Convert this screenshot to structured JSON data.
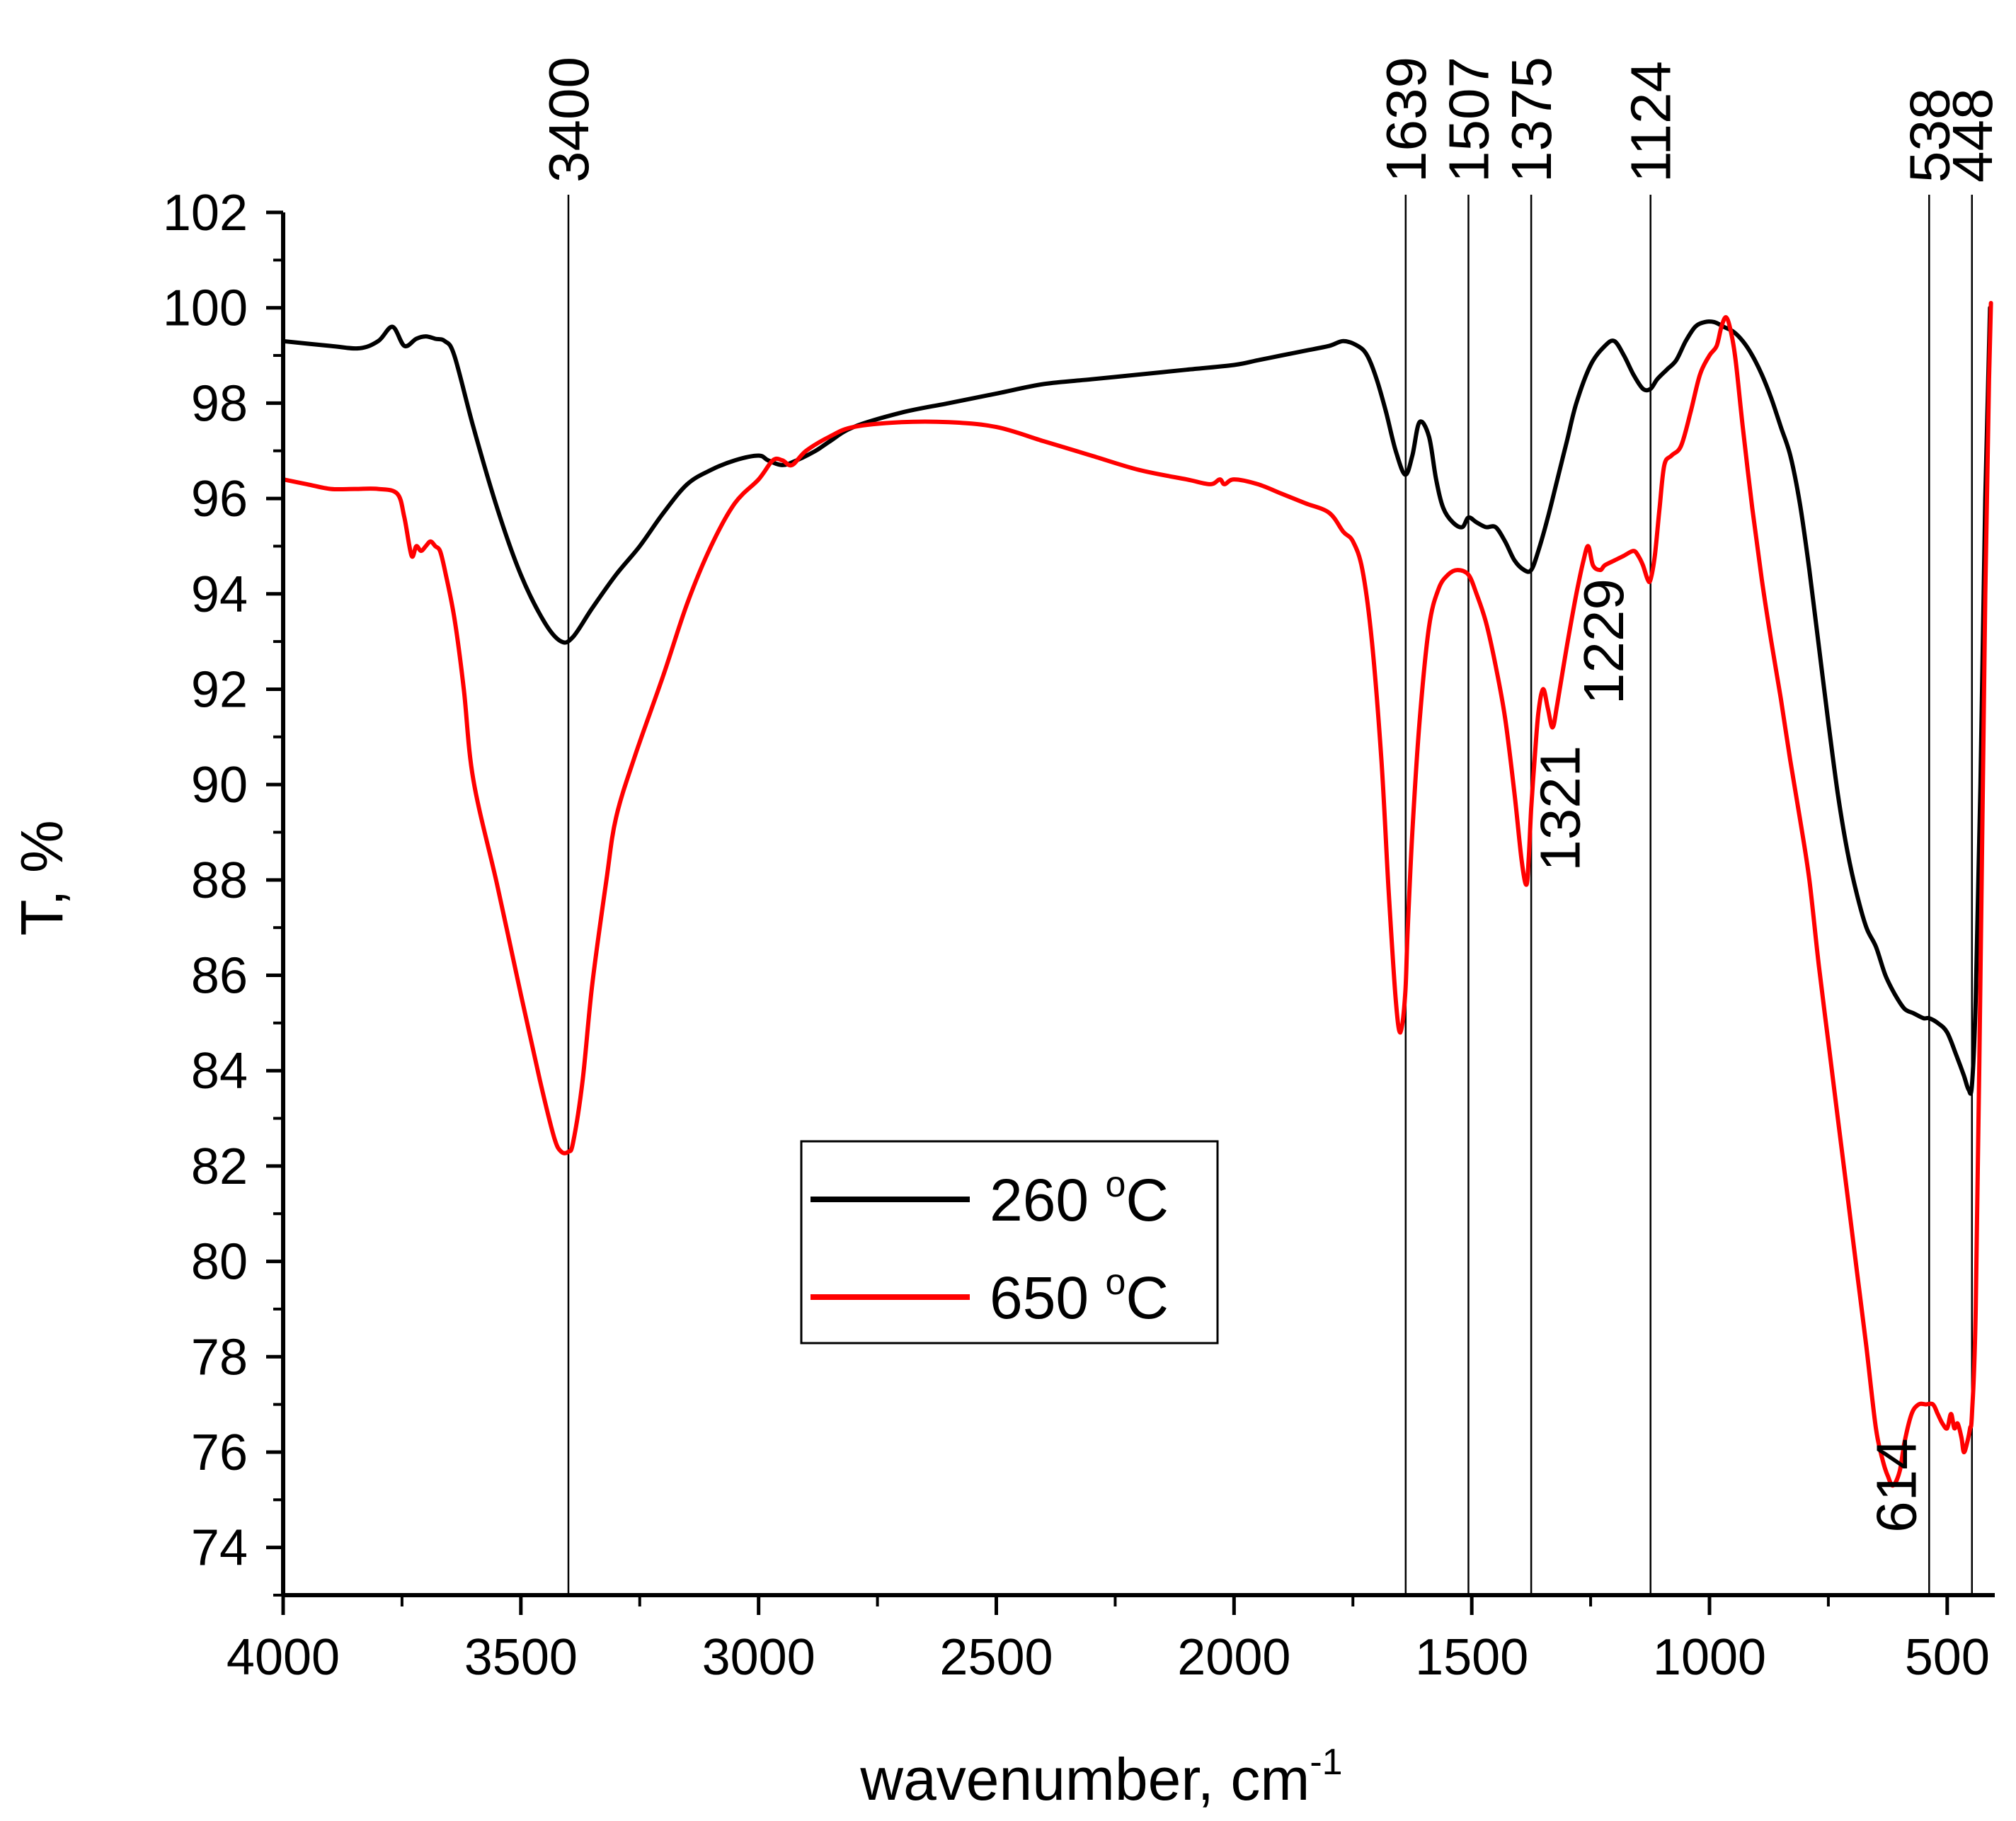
{
  "chart_data": {
    "type": "line",
    "title": "",
    "xlabel": "wavenumber, cm",
    "xlabel_sup": "-1",
    "ylabel": "T, %",
    "xlim": [
      4000,
      400
    ],
    "ylim": [
      73,
      102
    ],
    "x_ticks": [
      4000,
      3500,
      3000,
      2500,
      2000,
      1500,
      1000,
      500
    ],
    "y_ticks": [
      74,
      76,
      78,
      80,
      82,
      84,
      86,
      88,
      90,
      92,
      94,
      96,
      98,
      100,
      102
    ],
    "x_tick_labels": [
      "4000",
      "3500",
      "3000",
      "2500",
      "2000",
      "1500",
      "1000",
      "500"
    ],
    "y_tick_labels": [
      "74",
      "76",
      "78",
      "80",
      "82",
      "84",
      "86",
      "88",
      "90",
      "92",
      "94",
      "96",
      "98",
      "100",
      "102"
    ],
    "legend": {
      "position": "lower-center",
      "entries": [
        {
          "label": "260 ",
          "sup": "o",
          "unit": "C",
          "color": "#000000"
        },
        {
          "label": "650 ",
          "sup": "o",
          "unit": "C",
          "color": "#ff0000"
        }
      ]
    },
    "reference_lines": [
      {
        "x": 3400,
        "label": "3400"
      },
      {
        "x": 1639,
        "label": "1639"
      },
      {
        "x": 1507,
        "label": "1507"
      },
      {
        "x": 1375,
        "label": "1375"
      },
      {
        "x": 1124,
        "label": "1124"
      },
      {
        "x": 538,
        "label": "538"
      },
      {
        "x": 448,
        "label": "448"
      }
    ],
    "inline_labels": [
      {
        "x": 1321,
        "y": 89.5,
        "label": "1321"
      },
      {
        "x": 1229,
        "y": 93.0,
        "label": "1229"
      },
      {
        "x": 614,
        "y": 75.3,
        "label": "614"
      }
    ],
    "series": [
      {
        "name": "260 °C",
        "color": "#000000",
        "x": [
          4000,
          3900,
          3840,
          3800,
          3770,
          3745,
          3720,
          3700,
          3680,
          3660,
          3640,
          3600,
          3550,
          3500,
          3450,
          3415,
          3390,
          3350,
          3300,
          3250,
          3200,
          3150,
          3100,
          3050,
          3000,
          2980,
          2950,
          2920,
          2880,
          2850,
          2800,
          2700,
          2600,
          2500,
          2400,
          2300,
          2200,
          2100,
          2000,
          1950,
          1900,
          1850,
          1800,
          1770,
          1740,
          1720,
          1700,
          1680,
          1660,
          1640,
          1625,
          1610,
          1590,
          1575,
          1560,
          1540,
          1520,
          1507,
          1490,
          1470,
          1450,
          1430,
          1410,
          1390,
          1375,
          1360,
          1340,
          1320,
          1300,
          1280,
          1250,
          1220,
          1200,
          1180,
          1160,
          1140,
          1124,
          1110,
          1090,
          1070,
          1050,
          1030,
          1010,
          990,
          970,
          950,
          930,
          910,
          890,
          870,
          850,
          830,
          810,
          790,
          770,
          750,
          730,
          710,
          690,
          670,
          650,
          630,
          610,
          590,
          570,
          550,
          538,
          520,
          500,
          480,
          465,
          455,
          448,
          440,
          430,
          420,
          410
        ],
        "y": [
          99.3,
          99.2,
          99.15,
          99.3,
          99.6,
          99.2,
          99.35,
          99.4,
          99.35,
          99.3,
          99.0,
          97.5,
          95.8,
          94.4,
          93.4,
          93.0,
          93.1,
          93.7,
          94.4,
          95.0,
          95.7,
          96.3,
          96.6,
          96.8,
          96.9,
          96.8,
          96.7,
          96.8,
          97.0,
          97.2,
          97.5,
          97.8,
          98.0,
          98.2,
          98.4,
          98.5,
          98.6,
          98.7,
          98.8,
          98.9,
          99.0,
          99.1,
          99.2,
          99.3,
          99.2,
          99.0,
          98.5,
          97.8,
          97.0,
          96.5,
          96.9,
          97.6,
          97.3,
          96.4,
          95.8,
          95.5,
          95.4,
          95.6,
          95.5,
          95.4,
          95.4,
          95.1,
          94.7,
          94.5,
          94.5,
          94.9,
          95.6,
          96.4,
          97.2,
          98.0,
          98.8,
          99.2,
          99.3,
          99.0,
          98.6,
          98.3,
          98.3,
          98.5,
          98.7,
          98.9,
          99.3,
          99.6,
          99.7,
          99.7,
          99.6,
          99.5,
          99.3,
          99.0,
          98.6,
          98.1,
          97.5,
          96.9,
          95.9,
          94.5,
          92.9,
          91.3,
          89.8,
          88.6,
          87.7,
          87.0,
          86.6,
          86.0,
          85.6,
          85.3,
          85.2,
          85.1,
          85.1,
          85.0,
          84.8,
          84.3,
          83.9,
          83.6,
          83.7,
          85.5,
          90.0,
          96.0,
          100.0
        ]
      },
      {
        "name": "650 °C",
        "color": "#ff0000",
        "x": [
          4000,
          3950,
          3900,
          3850,
          3800,
          3760,
          3745,
          3730,
          3720,
          3710,
          3700,
          3690,
          3680,
          3670,
          3660,
          3640,
          3620,
          3600,
          3550,
          3500,
          3460,
          3430,
          3415,
          3400,
          3390,
          3370,
          3350,
          3320,
          3300,
          3260,
          3200,
          3150,
          3100,
          3050,
          3000,
          2970,
          2950,
          2930,
          2900,
          2850,
          2800,
          2700,
          2600,
          2500,
          2400,
          2300,
          2200,
          2100,
          2050,
          2030,
          2020,
          2000,
          1950,
          1900,
          1850,
          1800,
          1770,
          1750,
          1730,
          1710,
          1690,
          1675,
          1660,
          1650,
          1640,
          1635,
          1625,
          1610,
          1590,
          1570,
          1550,
          1530,
          1507,
          1490,
          1470,
          1450,
          1430,
          1410,
          1395,
          1385,
          1380,
          1375,
          1368,
          1360,
          1350,
          1340,
          1330,
          1320,
          1300,
          1280,
          1265,
          1255,
          1245,
          1230,
          1220,
          1200,
          1180,
          1160,
          1150,
          1140,
          1130,
          1124,
          1115,
          1105,
          1095,
          1080,
          1060,
          1040,
          1020,
          1000,
          985,
          975,
          965,
          955,
          945,
          930,
          910,
          890,
          870,
          850,
          830,
          810,
          790,
          770,
          750,
          730,
          710,
          690,
          670,
          650,
          635,
          625,
          614,
          600,
          590,
          575,
          560,
          545,
          530,
          520,
          510,
          500,
          492,
          485,
          478,
          470,
          465,
          458,
          452,
          448,
          440,
          430,
          420,
          412,
          408
        ],
        "y": [
          96.4,
          96.3,
          96.2,
          96.2,
          96.2,
          96.1,
          95.6,
          94.8,
          95.0,
          94.9,
          95.0,
          95.1,
          95.0,
          94.9,
          94.5,
          93.5,
          92.0,
          90.1,
          87.9,
          85.6,
          83.8,
          82.6,
          82.3,
          82.3,
          82.5,
          83.8,
          85.8,
          88.0,
          89.3,
          90.6,
          92.3,
          93.8,
          95.0,
          95.9,
          96.4,
          96.8,
          96.8,
          96.7,
          97.0,
          97.3,
          97.5,
          97.6,
          97.6,
          97.5,
          97.2,
          96.9,
          96.6,
          96.4,
          96.3,
          96.4,
          96.3,
          96.4,
          96.3,
          96.1,
          95.9,
          95.7,
          95.3,
          95.1,
          94.5,
          93.0,
          90.5,
          87.8,
          85.5,
          84.8,
          85.6,
          86.9,
          89.0,
          91.3,
          93.3,
          94.1,
          94.4,
          94.5,
          94.4,
          94.0,
          93.4,
          92.5,
          91.4,
          89.8,
          88.4,
          87.9,
          88.5,
          89.5,
          90.5,
          91.5,
          92.0,
          91.6,
          91.2,
          91.7,
          92.9,
          94.0,
          94.7,
          95.0,
          94.6,
          94.5,
          94.6,
          94.7,
          94.8,
          94.9,
          94.8,
          94.6,
          94.3,
          94.3,
          94.8,
          95.8,
          96.7,
          96.9,
          97.1,
          97.8,
          98.6,
          99.0,
          99.2,
          99.6,
          99.8,
          99.5,
          98.9,
          97.5,
          95.8,
          94.3,
          93.0,
          91.8,
          90.5,
          89.3,
          88.0,
          86.2,
          84.6,
          83.0,
          81.4,
          79.8,
          78.2,
          76.5,
          75.8,
          75.5,
          75.3,
          75.6,
          76.2,
          76.8,
          77.0,
          77.0,
          77.0,
          76.8,
          76.6,
          76.5,
          76.8,
          76.5,
          76.6,
          76.3,
          76.0,
          76.2,
          76.5,
          76.8,
          79.0,
          86.0,
          94.0,
          98.5,
          100.1
        ]
      }
    ]
  }
}
